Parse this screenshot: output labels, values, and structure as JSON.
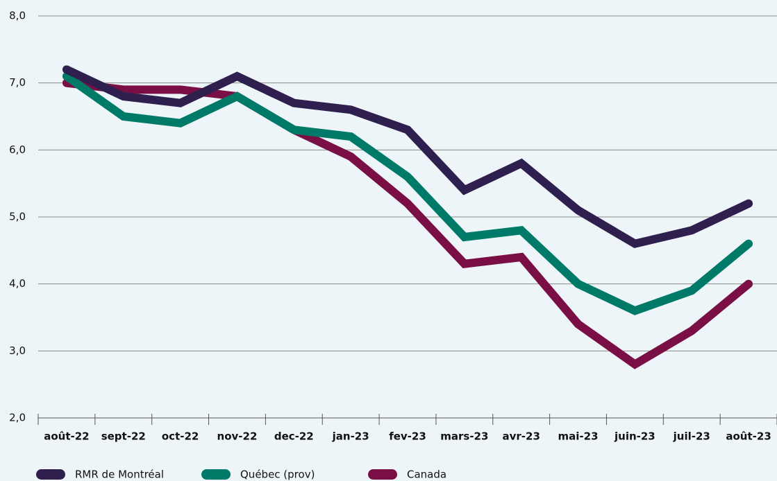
{
  "chart_data": {
    "type": "line",
    "categories": [
      "août-22",
      "sept-22",
      "oct-22",
      "nov-22",
      "dec-22",
      "jan-23",
      "fev-23",
      "mars-23",
      "avr-23",
      "mai-23",
      "juin-23",
      "juil-23",
      "août-23"
    ],
    "series": [
      {
        "name": "Canada",
        "color": "#7a0f45",
        "values": [
          7.0,
          6.9,
          6.9,
          6.8,
          6.3,
          5.9,
          5.2,
          4.3,
          4.4,
          3.4,
          2.8,
          3.3,
          4.0
        ]
      },
      {
        "name": "Québec (prov)",
        "color": "#007a68",
        "values": [
          7.1,
          6.5,
          6.4,
          6.8,
          6.3,
          6.2,
          5.6,
          4.7,
          4.8,
          4.0,
          3.6,
          3.9,
          4.6
        ]
      },
      {
        "name": "RMR de Montréal",
        "color": "#2e1f4f",
        "values": [
          7.2,
          6.8,
          6.7,
          7.1,
          6.7,
          6.6,
          6.3,
          5.4,
          5.8,
          5.1,
          4.6,
          4.8,
          5.2
        ]
      }
    ],
    "legend_order": [
      "RMR de Montréal",
      "Québec (prov)",
      "Canada"
    ],
    "ylim": [
      2,
      8
    ],
    "yticks": [
      {
        "value": 2,
        "label": "2,0"
      },
      {
        "value": 3,
        "label": "3,0"
      },
      {
        "value": 4,
        "label": "4,0"
      },
      {
        "value": 5,
        "label": "5,0"
      },
      {
        "value": 6,
        "label": "6,0"
      },
      {
        "value": 7,
        "label": "7,0"
      },
      {
        "value": 8,
        "label": "8,0"
      }
    ],
    "grid": true
  }
}
